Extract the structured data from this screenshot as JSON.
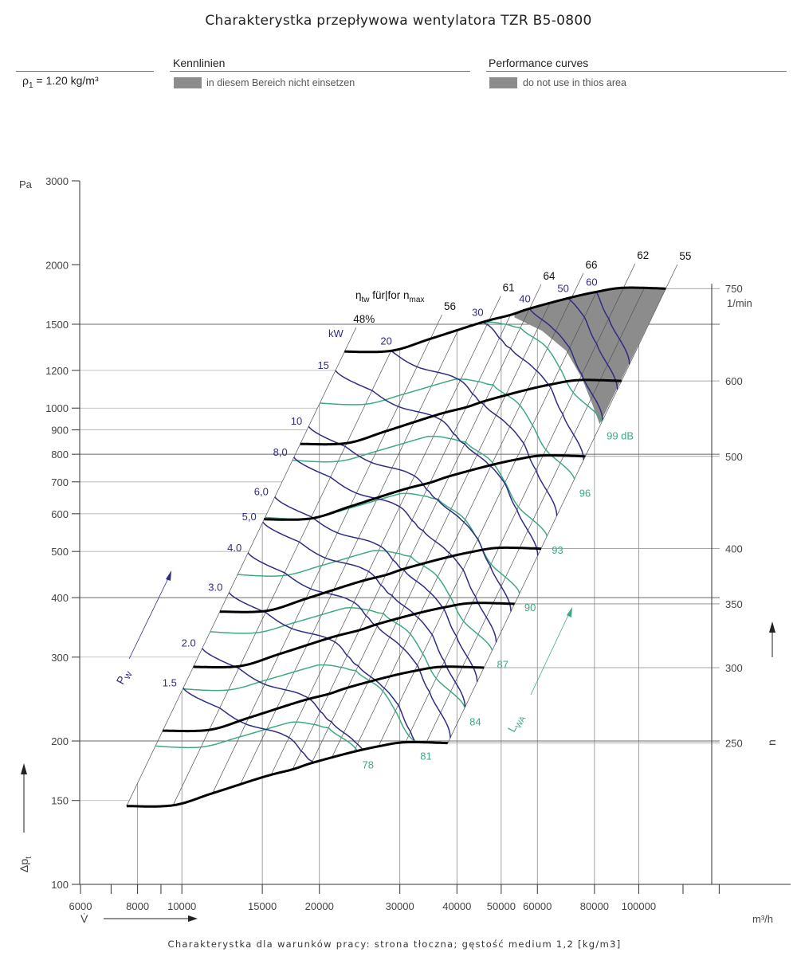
{
  "header": {
    "title": "Charakterystka przepływowa wentylatora TZR B5-0800",
    "density_symbol": "ρ",
    "density_sub": "1",
    "density_value": " = 1.20 kg/m³",
    "de_heading": "Kennlinien",
    "de_legend": "in diesem Bereich nicht einsetzen",
    "en_heading": "Performance curves",
    "en_legend": "do not use in thios area"
  },
  "footer": "Charakterystka dla warunków pracy: strona tłoczna; gęstość medium 1,2 [kg/m3]",
  "colors": {
    "speed_curves": "#000000",
    "power_curves": "#2e2c83",
    "sound_curves": "#3daa80",
    "restricted_area": "#8c8c8c",
    "grid": "#9a9a9a"
  },
  "chart_data": {
    "type": "line",
    "title": "Charakterystka przepływowa wentylatora TZR B5-0800",
    "x_axis": {
      "symbol": "V̇",
      "unit": "m³/h",
      "scale": "log",
      "range": [
        6000,
        215000
      ],
      "ticks": [
        {
          "value": 6000,
          "label": "6000"
        },
        {
          "value": 8000,
          "label": "8000"
        },
        {
          "value": 10000,
          "label": "10000"
        },
        {
          "value": 15000,
          "label": "15000"
        },
        {
          "value": 20000,
          "label": "20000"
        },
        {
          "value": 30000,
          "label": "30000"
        },
        {
          "value": 40000,
          "label": "40000"
        },
        {
          "value": 50000,
          "label": "50000"
        },
        {
          "value": 60000,
          "label": "60000"
        },
        {
          "value": 80000,
          "label": "80000"
        },
        {
          "value": 100000,
          "label": "100000"
        }
      ],
      "minor_ticks": [
        7000,
        9000,
        125000,
        150000
      ]
    },
    "y_axis": {
      "symbol": "Δp",
      "symbol_sub": "t",
      "unit": "Pa",
      "scale": "log",
      "range": [
        100,
        3000
      ],
      "ticks": [
        {
          "value": 3000,
          "label": "3000"
        },
        {
          "value": 2000,
          "label": "2000"
        },
        {
          "value": 1500,
          "label": "1500"
        },
        {
          "value": 1200,
          "label": "1200"
        },
        {
          "value": 1000,
          "label": "1000"
        },
        {
          "value": 900,
          "label": "900"
        },
        {
          "value": 800,
          "label": "800"
        },
        {
          "value": 700,
          "label": "700"
        },
        {
          "value": 600,
          "label": "600"
        },
        {
          "value": 500,
          "label": "500"
        },
        {
          "value": 400,
          "label": "400"
        },
        {
          "value": 300,
          "label": "300"
        },
        {
          "value": 200,
          "label": "200"
        },
        {
          "value": 150,
          "label": "150"
        },
        {
          "value": 100,
          "label": "100"
        }
      ],
      "major_gridlines": [
        1500,
        800,
        400,
        200
      ]
    },
    "n_axis": {
      "symbol": "n",
      "unit": "1/min",
      "ticks": [
        {
          "value": 750,
          "label": "750"
        },
        {
          "value": 600,
          "label": "600"
        },
        {
          "value": 500,
          "label": "500"
        },
        {
          "value": 400,
          "label": "400"
        },
        {
          "value": 350,
          "label": "350"
        },
        {
          "value": 300,
          "label": "300"
        },
        {
          "value": 250,
          "label": "250"
        }
      ]
    },
    "n_max": 750,
    "operating_points_at_n_max": [
      {
        "V": 22700,
        "p": 1314,
        "eta": 48,
        "P_kW": 17.2,
        "LwA_dB": 98.7
      },
      {
        "V": 28700,
        "p": 1319,
        "eta": 52.5,
        "P_kW": 20,
        "LwA_dB": 98.8
      },
      {
        "V": 35000,
        "p": 1398,
        "eta": 56,
        "P_kW": 24.5,
        "LwA_dB": 98.9
      },
      {
        "V": 45500,
        "p": 1515,
        "eta": 60.5,
        "P_kW": 30,
        "LwA_dB": 99
      },
      {
        "V": 52400,
        "p": 1569,
        "eta": 62.5,
        "P_kW": 35.5,
        "LwA_dB": 99.5
      },
      {
        "V": 57700,
        "p": 1618,
        "eta": 64,
        "P_kW": 40,
        "LwA_dB": 100
      },
      {
        "V": 70000,
        "p": 1701,
        "eta": 65.8,
        "P_kW": 50,
        "LwA_dB": 101.5
      },
      {
        "V": 80800,
        "p": 1754,
        "eta": 65.5,
        "P_kW": 60,
        "LwA_dB": 103
      },
      {
        "V": 92600,
        "p": 1789,
        "eta": 62,
        "P_kW": 75,
        "LwA_dB": 104.5
      },
      {
        "V": 114600,
        "p": 1782,
        "eta": 55,
        "P_kW": 104,
        "LwA_dB": 106
      }
    ],
    "speed_curves_rpm": [
      750,
      600,
      500,
      400,
      350,
      300,
      250
    ],
    "power_curves": {
      "unit_label": "kW",
      "axis_label": "P",
      "axis_label_sub": "W",
      "items": [
        {
          "value": 1.5,
          "label": "1.5"
        },
        {
          "value": 2,
          "label": "2.0"
        },
        {
          "value": 3,
          "label": "3.0"
        },
        {
          "value": 4,
          "label": "4.0"
        },
        {
          "value": 5,
          "label": "5,0"
        },
        {
          "value": 6,
          "label": "6,0"
        },
        {
          "value": 8,
          "label": "8,0"
        },
        {
          "value": 10,
          "label": "10"
        },
        {
          "value": 15,
          "label": "15"
        },
        {
          "value": 20,
          "label": "20"
        },
        {
          "value": 30,
          "label": "30"
        },
        {
          "value": 40,
          "label": "40"
        },
        {
          "value": 50,
          "label": "50"
        },
        {
          "value": 60,
          "label": "60"
        }
      ]
    },
    "sound_curves": {
      "axis_label": "L",
      "axis_label_sub": "WA",
      "items": [
        {
          "value": 78,
          "label": "78"
        },
        {
          "value": 81,
          "label": "81"
        },
        {
          "value": 84,
          "label": "84"
        },
        {
          "value": 87,
          "label": "87"
        },
        {
          "value": 90,
          "label": "90"
        },
        {
          "value": 93,
          "label": "93"
        },
        {
          "value": 96,
          "label": "96"
        },
        {
          "value": 99,
          "label": "99 dB"
        }
      ]
    },
    "efficiency": {
      "heading_symbol": "η",
      "heading_sub": "tw",
      "heading_text": " für|for n",
      "heading_sub2": "max",
      "lines": [
        {
          "eta": 48,
          "label": "48%",
          "V": 22700
        },
        {
          "eta": 56,
          "label": "56",
          "V": 35000
        },
        {
          "eta": 61,
          "label": "61",
          "V": 47000
        },
        {
          "eta": 64,
          "label": "64",
          "V": 57700
        },
        {
          "eta": 66,
          "label": "66",
          "V": 71400
        },
        {
          "eta": 62,
          "label": "62",
          "V": 92600
        },
        {
          "eta": 55,
          "label": "55",
          "V": 114600
        }
      ],
      "unlabeled_lines_V_at_n_max": [
        28700,
        40300,
        52400,
        64000,
        80800,
        102900
      ]
    },
    "restricted_area_boundary": [
      [
        53430,
        1551
      ],
      [
        61460,
        1453
      ],
      [
        69380,
        1319
      ],
      [
        75170,
        1153
      ],
      [
        78890,
        1027
      ],
      [
        82130,
        926
      ]
    ]
  }
}
